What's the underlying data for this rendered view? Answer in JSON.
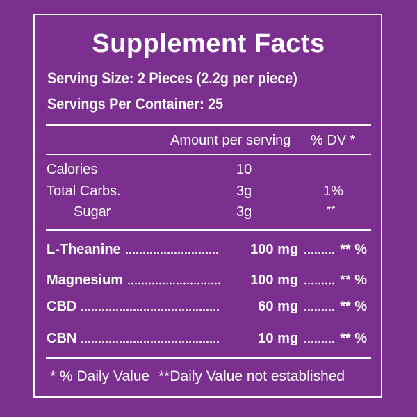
{
  "title": "Supplement Facts",
  "serving_size": "Serving Size: 2 Pieces (2.2g per piece)",
  "servings_per_container": "Servings Per Container: 25",
  "columns": {
    "amount": "Amount per serving",
    "dv": "% DV *"
  },
  "nutrients": [
    {
      "name": "Calories",
      "amount": "10"
    },
    {
      "name": "Total Carbs.",
      "amount": "3g",
      "dv": "1%"
    },
    {
      "name": "Sugar",
      "amount": "3g",
      "dv": "**"
    }
  ],
  "ingredients": [
    {
      "name": "L-Theanine",
      "amount": "100 mg",
      "dv": "** %"
    },
    {
      "name": "Magnesium",
      "amount": "100 mg",
      "dv": "** %"
    },
    {
      "name": "CBD",
      "amount": "60 mg",
      "dv": "** %"
    },
    {
      "name": "CBN",
      "amount": "10 mg",
      "dv": "** %"
    }
  ],
  "footnote": {
    "dv": "* % Daily Value",
    "not_established": "**Daily Value not established"
  }
}
